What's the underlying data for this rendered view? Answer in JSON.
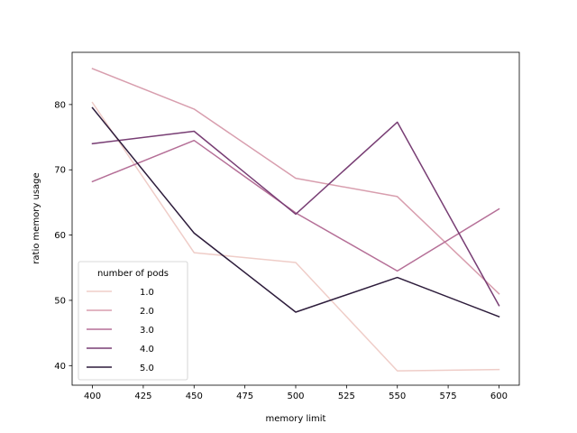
{
  "chart_data": {
    "type": "line",
    "xlabel": "memory limit",
    "ylabel": "ratio memory usage",
    "xlim": [
      390,
      610
    ],
    "ylim": [
      37,
      88
    ],
    "x_ticks": [
      "400",
      "425",
      "450",
      "475",
      "500",
      "525",
      "550",
      "575",
      "600"
    ],
    "y_ticks": [
      "40",
      "50",
      "60",
      "70",
      "80"
    ],
    "x": [
      400,
      450,
      500,
      550,
      600
    ],
    "grid": false,
    "legend": {
      "title": "number of pods",
      "placement": "lower-left"
    },
    "series": [
      {
        "name": "1.0",
        "color": "#efcdc8",
        "values": [
          80.3,
          57.3,
          55.8,
          39.2,
          39.4
        ]
      },
      {
        "name": "2.0",
        "color": "#d89eae",
        "values": [
          85.5,
          79.3,
          68.7,
          65.9,
          51.0
        ]
      },
      {
        "name": "3.0",
        "color": "#b56f97",
        "values": [
          68.2,
          74.5,
          63.4,
          54.5,
          64.0
        ]
      },
      {
        "name": "4.0",
        "color": "#783e74",
        "values": [
          74.0,
          75.9,
          63.2,
          77.3,
          49.2
        ]
      },
      {
        "name": "5.0",
        "color": "#2d1c3b",
        "values": [
          79.5,
          60.3,
          48.2,
          53.5,
          47.5
        ]
      }
    ]
  }
}
